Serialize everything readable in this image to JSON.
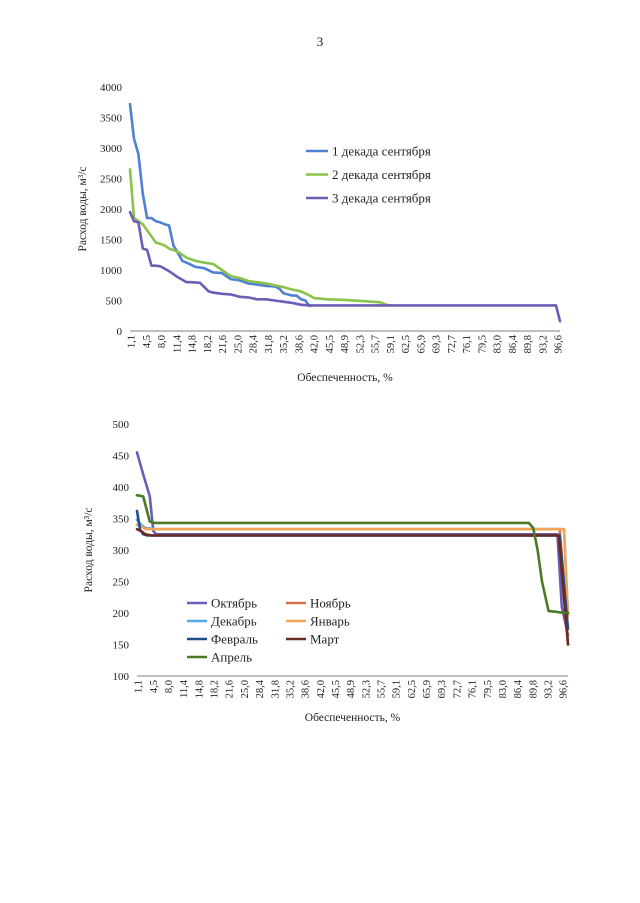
{
  "page_number": "3",
  "chart_data": [
    {
      "type": "line",
      "ylabel": "Расход воды, м³/с",
      "xlabel": "Обеспеченность, %",
      "ylim": [
        0,
        4000
      ],
      "yticks": [
        0,
        500,
        1000,
        1500,
        2000,
        2500,
        3000,
        3500,
        4000
      ],
      "xlim": [
        1.1,
        98.9
      ],
      "xticks": [
        "1,1",
        "4,5",
        "8,0",
        "11,4",
        "14,8",
        "18,2",
        "21,6",
        "25,0",
        "28,4",
        "31,8",
        "35,2",
        "38,6",
        "42,0",
        "45,5",
        "48,9",
        "52,3",
        "55,7",
        "59,1",
        "62,5",
        "65,9",
        "69,3",
        "72,7",
        "76,1",
        "79,5",
        "83,0",
        "86,4",
        "89,8",
        "93,2",
        "96,6"
      ],
      "grid": false,
      "legend_position": "right",
      "series": [
        {
          "name": "1 декада сентября",
          "color": "#4f81d3",
          "x": [
            1.1,
            2.0,
            3.0,
            4.0,
            5.0,
            6.0,
            7.0,
            8.0,
            9.0,
            10.0,
            11.0,
            12.0,
            13.0,
            14.0,
            16.0,
            18.0,
            20.0,
            22.0,
            24.0,
            26.0,
            28.0,
            30.0,
            32.0,
            34.0,
            35.0,
            36.0,
            37.0,
            38.0,
            39.0,
            40.0,
            41.0,
            41.5,
            42.0
          ],
          "values": [
            3720,
            3150,
            2900,
            2250,
            1850,
            1850,
            1800,
            1780,
            1750,
            1730,
            1400,
            1280,
            1150,
            1120,
            1050,
            1030,
            960,
            950,
            850,
            830,
            780,
            760,
            740,
            730,
            700,
            620,
            600,
            580,
            580,
            520,
            500,
            450,
            410
          ]
        },
        {
          "name": "2 декада сентября",
          "color": "#8bc34a",
          "x": [
            1.1,
            2.0,
            3.0,
            4.0,
            5.0,
            6.0,
            7.0,
            8.0,
            9.0,
            10.0,
            12.0,
            14.0,
            16.0,
            18.0,
            20.0,
            22.0,
            24.0,
            26.0,
            28.0,
            30.0,
            32.0,
            34.0,
            36.0,
            38.0,
            40.0,
            42.0,
            43.0,
            46.0,
            50.0,
            54.0,
            58.0,
            59.1,
            60.0
          ],
          "values": [
            2650,
            1850,
            1800,
            1750,
            1650,
            1550,
            1450,
            1430,
            1400,
            1350,
            1300,
            1200,
            1150,
            1120,
            1100,
            1000,
            900,
            870,
            820,
            800,
            780,
            750,
            720,
            680,
            650,
            580,
            540,
            520,
            510,
            490,
            470,
            440,
            420
          ]
        },
        {
          "name": "3 декада сентября",
          "color": "#6a5fb6",
          "x": [
            1.1,
            2.0,
            3.0,
            4.0,
            5.0,
            6.0,
            7.0,
            8.0,
            9.0,
            10.0,
            12.0,
            14.0,
            15.0,
            17.0,
            18.0,
            19.0,
            20.0,
            22.0,
            24.0,
            26.0,
            28.0,
            30.0,
            32.0,
            34.0,
            36.0,
            38.0,
            40.0,
            42.0,
            50.0,
            60.0,
            70.0,
            80.0,
            90.0,
            95.0,
            97.0,
            98.0,
            98.9
          ],
          "values": [
            1950,
            1800,
            1780,
            1350,
            1330,
            1070,
            1070,
            1060,
            1020,
            980,
            880,
            800,
            800,
            790,
            720,
            650,
            630,
            610,
            600,
            560,
            550,
            520,
            520,
            500,
            480,
            460,
            430,
            420,
            420,
            420,
            420,
            420,
            420,
            420,
            420,
            420,
            160
          ]
        }
      ]
    },
    {
      "type": "line",
      "ylabel": "Расход воды, м³/с",
      "xlabel": "Обеспеченность, %",
      "ylim": [
        100,
        500
      ],
      "yticks": [
        100,
        150,
        200,
        250,
        300,
        350,
        400,
        450,
        500
      ],
      "xlim": [
        1.1,
        98.9
      ],
      "xticks": [
        "1,1",
        "4,5",
        "8,0",
        "11,4",
        "14,8",
        "18,2",
        "21,6",
        "25,0",
        "28,4",
        "31,8",
        "35,2",
        "38,6",
        "42,0",
        "45,5",
        "48,9",
        "52,3",
        "55,7",
        "59,1",
        "62,5",
        "65,9",
        "69,3",
        "72,7",
        "76,1",
        "79,5",
        "83,0",
        "86,4",
        "89,8",
        "93,2",
        "96,6"
      ],
      "grid": false,
      "legend_position": "bottom-left",
      "series": [
        {
          "name": "Октябрь",
          "color": "#6a5fb6",
          "x": [
            1.1,
            2.5,
            4.0,
            4.8,
            5.5,
            95.0,
            96.5,
            97.5,
            98.9
          ],
          "values": [
            455,
            420,
            385,
            330,
            325,
            325,
            325,
            210,
            165
          ]
        },
        {
          "name": "Ноябрь",
          "color": "#d9734c",
          "x": [
            1.1,
            2.0,
            3.0,
            5.0,
            97.0,
            98.0,
            98.9
          ],
          "values": [
            340,
            338,
            335,
            333,
            333,
            250,
            150
          ]
        },
        {
          "name": "Декабрь",
          "color": "#55a7e6",
          "x": [
            1.1,
            2.0,
            3.0,
            5.0,
            97.5,
            98.0,
            98.9
          ],
          "values": [
            348,
            340,
            335,
            333,
            333,
            333,
            195
          ]
        },
        {
          "name": "Январь",
          "color": "#f0a55a",
          "x": [
            1.1,
            2.0,
            3.0,
            5.0,
            97.0,
            98.0,
            98.9
          ],
          "values": [
            340,
            338,
            333,
            333,
            333,
            333,
            195
          ]
        },
        {
          "name": "Февраль",
          "color": "#1f4e8c",
          "x": [
            1.1,
            1.8,
            2.5,
            3.5,
            4.5,
            96.0,
            97.0,
            98.9
          ],
          "values": [
            362,
            332,
            325,
            323,
            323,
            323,
            323,
            175
          ]
        },
        {
          "name": "Март",
          "color": "#6b2a22",
          "x": [
            1.1,
            2.0,
            3.0,
            4.5,
            96.0,
            96.8,
            98.9
          ],
          "values": [
            333,
            330,
            325,
            323,
            323,
            323,
            150
          ]
        },
        {
          "name": "Апрель",
          "color": "#4a7a24",
          "x": [
            1.1,
            2.5,
            4.0,
            5.0,
            90.0,
            91.0,
            92.0,
            93.0,
            94.5,
            96.0,
            98.0,
            98.9
          ],
          "values": [
            387,
            385,
            345,
            343,
            343,
            335,
            300,
            250,
            203,
            202,
            200,
            200
          ]
        }
      ]
    }
  ]
}
